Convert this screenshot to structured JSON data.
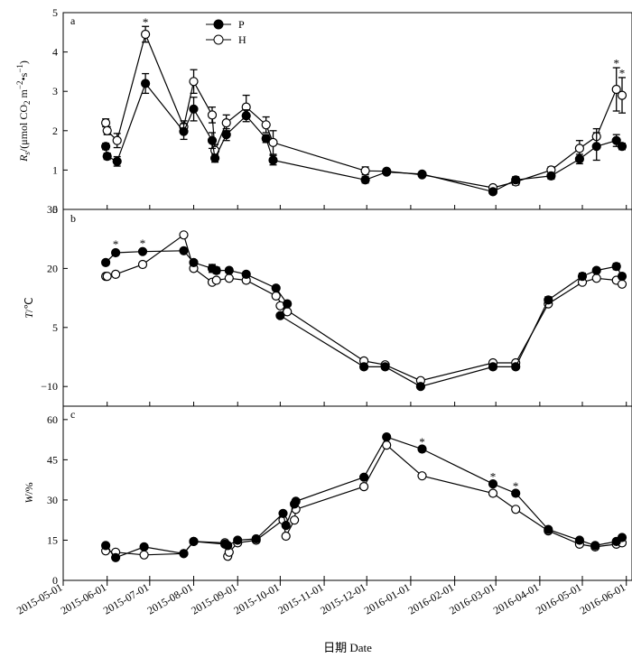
{
  "chart_data": {
    "type": "line",
    "x_dates": [
      "2015-06-01",
      "2015-06-08",
      "2015-06-28",
      "2015-08-01",
      "2015-08-08",
      "2015-08-24",
      "2015-08-26",
      "2015-09-01",
      "2015-09-11",
      "2015-09-27",
      "2015-09-30",
      "2015-10-03",
      "2015-10-11",
      "2015-12-01",
      "2015-12-15",
      "2016-01-08",
      "2016-02-29",
      "2016-03-14",
      "2016-04-10",
      "2016-05-04",
      "2016-05-14",
      "2016-05-25",
      "2016-05-28"
    ],
    "x_ticks": [
      "2015-05-01",
      "2015-06-01",
      "2015-07-01",
      "2015-08-01",
      "2015-09-01",
      "2015-10-01",
      "2015-11-01",
      "2015-12-01",
      "2016-01-01",
      "2016-02-01",
      "2016-03-01",
      "2016-04-01",
      "2016-05-01",
      "2016-06-01"
    ],
    "x_range": [
      "2015-05-01",
      "2016-06-05"
    ],
    "xlabel": "日期 Date",
    "legend": [
      {
        "name": "P",
        "marker": "filled-circle"
      },
      {
        "name": "H",
        "marker": "open-circle"
      }
    ],
    "panels": [
      {
        "letter": "a",
        "ylabel_main": "R",
        "ylabel_sub": "s",
        "ylabel_rest": "/(μmol CO",
        "ylabel_co2sub": "2",
        "ylabel_unit": " m",
        "ylabel_exp1": "−2",
        "ylabel_dot": "•s",
        "ylabel_exp2": "−1",
        "ylabel_close": ")",
        "ylim": [
          0,
          5
        ],
        "yticks": [
          "0",
          "1",
          "2",
          "3",
          "4",
          "5"
        ],
        "series": [
          {
            "name": "P",
            "points": [
              [
                "2015-05-31",
                1.6
              ],
              [
                "2015-06-01",
                1.35
              ],
              [
                "2015-06-08",
                1.22
              ],
              [
                "2015-06-28",
                3.2
              ],
              [
                "2015-07-25",
                1.98
              ],
              [
                "2015-08-01",
                2.55
              ],
              [
                "2015-08-14",
                1.75
              ],
              [
                "2015-08-16",
                1.3
              ],
              [
                "2015-08-24",
                1.9
              ],
              [
                "2015-09-07",
                2.38
              ],
              [
                "2015-09-21",
                1.8
              ],
              [
                "2015-09-26",
                1.25
              ],
              [
                "2015-11-30",
                0.75
              ],
              [
                "2015-12-15",
                0.95
              ],
              [
                "2016-01-09",
                0.9
              ],
              [
                "2016-02-28",
                0.45
              ],
              [
                "2016-03-15",
                0.75
              ],
              [
                "2016-04-09",
                0.85
              ],
              [
                "2016-04-29",
                1.28
              ],
              [
                "2016-05-11",
                1.6
              ],
              [
                "2016-05-25",
                1.75
              ],
              [
                "2016-05-29",
                1.6
              ]
            ],
            "error": [
              0.08,
              0.08,
              0.12,
              0.25,
              0.2,
              0.3,
              0.2,
              0.1,
              0.15,
              0.15,
              0.1,
              0.12,
              0.08,
              0.05,
              0.05,
              0.05,
              0.08,
              0.08,
              0.12,
              0.35,
              0.15,
              0.08
            ]
          },
          {
            "name": "H",
            "points": [
              [
                "2015-05-31",
                2.2
              ],
              [
                "2015-06-01",
                2.0
              ],
              [
                "2015-06-08",
                1.75
              ],
              [
                "2015-06-28",
                4.45
              ],
              [
                "2015-07-25",
                2.1
              ],
              [
                "2015-08-01",
                3.25
              ],
              [
                "2015-08-14",
                2.4
              ],
              [
                "2015-08-16",
                1.5
              ],
              [
                "2015-08-24",
                2.2
              ],
              [
                "2015-09-07",
                2.6
              ],
              [
                "2015-09-21",
                2.15
              ],
              [
                "2015-09-26",
                1.7
              ],
              [
                "2015-11-30",
                0.98
              ],
              [
                "2015-12-15",
                0.97
              ],
              [
                "2016-01-09",
                0.88
              ],
              [
                "2016-02-28",
                0.55
              ],
              [
                "2016-03-15",
                0.7
              ],
              [
                "2016-04-09",
                1.0
              ],
              [
                "2016-04-29",
                1.55
              ],
              [
                "2016-05-11",
                1.85
              ],
              [
                "2016-05-25",
                3.05
              ],
              [
                "2016-05-29",
                2.9
              ]
            ],
            "error": [
              0.1,
              0.1,
              0.18,
              0.2,
              0.15,
              0.3,
              0.2,
              0.15,
              0.2,
              0.3,
              0.2,
              0.3,
              0.1,
              0.05,
              0.05,
              0.05,
              0.08,
              0.08,
              0.2,
              0.2,
              0.55,
              0.45
            ]
          }
        ],
        "stars": [
          [
            "2015-06-28",
            4.75
          ],
          [
            "2016-05-25",
            3.7
          ],
          [
            "2016-05-29",
            3.45
          ]
        ]
      },
      {
        "letter": "b",
        "ylabel_main": "T",
        "ylabel_rest": "/℃",
        "ylim": [
          -15,
          35
        ],
        "yticks": [
          "−10",
          "5",
          "20",
          "35"
        ],
        "ytick_values": [
          -10,
          5,
          20,
          35
        ],
        "series": [
          {
            "name": "P",
            "points": [
              [
                "2015-05-31",
                21.5
              ],
              [
                "2015-06-07",
                24.0
              ],
              [
                "2015-06-26",
                24.3
              ],
              [
                "2015-07-25",
                24.5
              ],
              [
                "2015-08-01",
                21.5
              ],
              [
                "2015-08-14",
                20.0
              ],
              [
                "2015-08-17",
                19.5
              ],
              [
                "2015-08-26",
                19.5
              ],
              [
                "2015-09-07",
                18.5
              ],
              [
                "2015-09-28",
                15.0
              ],
              [
                "2015-10-06",
                11.0
              ],
              [
                "2015-10-01",
                8.0
              ],
              [
                "2015-11-29",
                -5.0
              ],
              [
                "2015-12-14",
                -5.0
              ],
              [
                "2016-01-08",
                -10.0
              ],
              [
                "2016-02-28",
                -5.0
              ],
              [
                "2016-03-15",
                -5.0
              ],
              [
                "2016-04-07",
                12.0
              ],
              [
                "2016-05-01",
                18.0
              ],
              [
                "2016-05-11",
                19.5
              ],
              [
                "2016-05-25",
                20.5
              ],
              [
                "2016-05-29",
                18.0
              ]
            ],
            "error": [
              0.5,
              0.5,
              0.5,
              0.5,
              0.6,
              1.0,
              0.8,
              0.6,
              0.6,
              0.6,
              0.6,
              0.6,
              0.4,
              0.4,
              0.4,
              0.4,
              0.4,
              0.8,
              0.8,
              0.6,
              0.8,
              0.6
            ]
          },
          {
            "name": "H",
            "points": [
              [
                "2015-05-31",
                18.0
              ],
              [
                "2015-06-01",
                18.0
              ],
              [
                "2015-06-07",
                18.5
              ],
              [
                "2015-06-26",
                21.0
              ],
              [
                "2015-07-25",
                28.5
              ],
              [
                "2015-08-01",
                20.0
              ],
              [
                "2015-08-14",
                16.5
              ],
              [
                "2015-08-17",
                17.0
              ],
              [
                "2015-08-26",
                17.5
              ],
              [
                "2015-09-07",
                17.0
              ],
              [
                "2015-09-28",
                13.0
              ],
              [
                "2015-10-06",
                9.0
              ],
              [
                "2015-10-01",
                10.5
              ],
              [
                "2015-11-29",
                -3.5
              ],
              [
                "2015-12-14",
                -4.5
              ],
              [
                "2016-01-08",
                -8.5
              ],
              [
                "2016-02-28",
                -4.0
              ],
              [
                "2016-03-15",
                -4.0
              ],
              [
                "2016-04-07",
                11.0
              ],
              [
                "2016-05-01",
                16.5
              ],
              [
                "2016-05-11",
                17.5
              ],
              [
                "2016-05-25",
                17.0
              ],
              [
                "2016-05-29",
                16.0
              ]
            ],
            "error": []
          }
        ],
        "stars": [
          [
            "2015-06-07",
            26.0
          ],
          [
            "2015-06-26",
            26.3
          ]
        ]
      },
      {
        "letter": "c",
        "ylabel_main": "W",
        "ylabel_rest": "/%",
        "ylim": [
          0,
          65
        ],
        "yticks": [
          "0",
          "15",
          "30",
          "45",
          "60"
        ],
        "ytick_values": [
          0,
          15,
          30,
          45,
          60
        ],
        "series": [
          {
            "name": "P",
            "points": [
              [
                "2015-05-31",
                13.0
              ],
              [
                "2015-06-07",
                8.5
              ],
              [
                "2015-06-27",
                12.5
              ],
              [
                "2015-07-25",
                10.0
              ],
              [
                "2015-08-01",
                14.5
              ],
              [
                "2015-08-23",
                13.5
              ],
              [
                "2015-08-25",
                13.0
              ],
              [
                "2015-09-01",
                15.0
              ],
              [
                "2015-09-14",
                15.5
              ],
              [
                "2015-10-03",
                25.0
              ],
              [
                "2015-10-05",
                20.5
              ],
              [
                "2015-10-11",
                28.5
              ],
              [
                "2015-10-12",
                29.5
              ],
              [
                "2015-11-29",
                38.5
              ],
              [
                "2015-12-15",
                53.5
              ],
              [
                "2016-01-09",
                49.0
              ],
              [
                "2016-02-28",
                36.0
              ],
              [
                "2016-03-15",
                32.5
              ],
              [
                "2016-04-07",
                19.0
              ],
              [
                "2016-04-29",
                15.0
              ],
              [
                "2016-05-10",
                13.0
              ],
              [
                "2016-05-25",
                14.5
              ],
              [
                "2016-05-29",
                16.0
              ]
            ],
            "error": []
          },
          {
            "name": "H",
            "points": [
              [
                "2015-05-31",
                11.0
              ],
              [
                "2015-06-07",
                10.5
              ],
              [
                "2015-06-27",
                9.5
              ],
              [
                "2015-07-25",
                10.0
              ],
              [
                "2015-08-01",
                14.5
              ],
              [
                "2015-08-23",
                14.0
              ],
              [
                "2015-08-25",
                9.0
              ],
              [
                "2015-08-26",
                10.5
              ],
              [
                "2015-09-01",
                14.0
              ],
              [
                "2015-09-14",
                15.0
              ],
              [
                "2015-10-03",
                22.5
              ],
              [
                "2015-10-05",
                16.5
              ],
              [
                "2015-10-11",
                22.5
              ],
              [
                "2015-10-12",
                26.5
              ],
              [
                "2015-11-29",
                35.0
              ],
              [
                "2015-12-15",
                50.5
              ],
              [
                "2016-01-09",
                39.0
              ],
              [
                "2016-02-28",
                32.5
              ],
              [
                "2016-03-15",
                26.5
              ],
              [
                "2016-04-07",
                18.5
              ],
              [
                "2016-04-29",
                13.5
              ],
              [
                "2016-05-10",
                12.5
              ],
              [
                "2016-05-25",
                13.5
              ],
              [
                "2016-05-29",
                14.0
              ]
            ],
            "error": []
          }
        ],
        "stars": [
          [
            "2016-01-09",
            51.5
          ],
          [
            "2016-02-28",
            38.5
          ],
          [
            "2016-03-15",
            35.0
          ]
        ]
      }
    ]
  }
}
